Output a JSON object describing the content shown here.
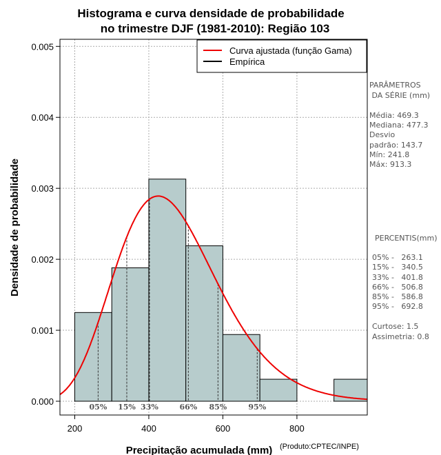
{
  "chart_data": {
    "type": "bar",
    "title": [
      "Histograma e curva densidade de probabilidade",
      "no trimestre DJF (1981-2010): Região 103"
    ],
    "xlabel": "Precipitação acumulada (mm)",
    "ylabel": "Densidade de probabilidade",
    "credit": "(Produto:CPTEC/INPE)",
    "xlim": [
      160,
      990
    ],
    "ylim": [
      0,
      0.0051
    ],
    "xticks": [
      "200",
      "400",
      "600",
      "800"
    ],
    "xtick_values": [
      200,
      400,
      600,
      800
    ],
    "yticks": [
      "0.000",
      "0.001",
      "0.002",
      "0.003",
      "0.004",
      "0.005"
    ],
    "ytick_values": [
      0,
      0.001,
      0.002,
      0.003,
      0.004,
      0.005
    ],
    "grid": true,
    "bins": [
      {
        "start": 200,
        "end": 300,
        "density": 0.00125
      },
      {
        "start": 300,
        "end": 400,
        "density": 0.00188
      },
      {
        "start": 400,
        "end": 500,
        "density": 0.00313
      },
      {
        "start": 500,
        "end": 600,
        "density": 0.00219
      },
      {
        "start": 600,
        "end": 700,
        "density": 0.00094
      },
      {
        "start": 700,
        "end": 800,
        "density": 0.00031
      },
      {
        "start": 800,
        "end": 900,
        "density": 0
      },
      {
        "start": 900,
        "end": 1000,
        "density": 0.00031
      }
    ],
    "gamma_fit": {
      "mean": 469.3,
      "sd": 143.7
    },
    "percentile_markers": [
      {
        "label": "05%",
        "x": 263.1
      },
      {
        "label": "15%",
        "x": 340.5
      },
      {
        "label": "33%",
        "x": 401.8
      },
      {
        "label": "66%",
        "x": 506.8
      },
      {
        "label": "85%",
        "x": 586.8
      },
      {
        "label": "95%",
        "x": 692.8
      }
    ],
    "legend": {
      "placement": "top-right",
      "entries": [
        {
          "label": "Curva ajustada (função Gama)",
          "color": "#ee0000"
        },
        {
          "label": "Empírica",
          "color": "#000000"
        }
      ]
    },
    "colors": {
      "bar_fill": "#b7cccc",
      "bar_stroke": "#000000",
      "curve": "#ee0000",
      "grid": "#aaaaaa"
    }
  },
  "side_panel": {
    "params_heading": [
      "PARÂMETROS",
      " DA SÉRIE (mm)"
    ],
    "params": [
      "Média:  469.3",
      "Mediana:  477.3",
      "Desvio",
      "padrão:  143.7",
      "Mín:  241.8",
      "Máx:  913.3"
    ],
    "percentis_heading": "PERCENTIS(mm)",
    "percentis": [
      "05% -   263.1",
      "15% -   340.5",
      "33% -   401.8",
      "66% -   506.8",
      "85% -   586.8",
      "95% -   692.8"
    ],
    "stats": [
      "Curtose:  1.5",
      "Assimetria:  0.8"
    ]
  }
}
